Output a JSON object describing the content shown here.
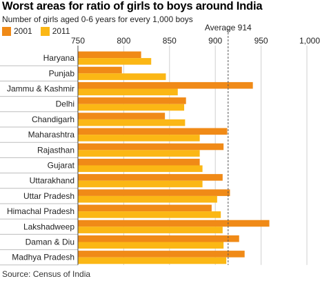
{
  "title": "Worst areas for ratio of girls to boys around India",
  "subtitle": "Number of girls aged 0-6 years for every 1,000 boys",
  "source": "Source: Census of India",
  "legend": [
    {
      "label": "2001",
      "color": "#f08a17"
    },
    {
      "label": "2011",
      "color": "#fbb715"
    }
  ],
  "chart_data": {
    "type": "bar",
    "orientation": "horizontal",
    "title": "Worst areas for ratio of girls to boys around India",
    "subtitle": "Number of girls aged 0-6 years for every 1,000 boys",
    "xlim": [
      750,
      1000
    ],
    "x_ticks": [
      "750",
      "800",
      "850",
      "900",
      "950",
      "1,000"
    ],
    "x_tick_values": [
      750,
      800,
      850,
      900,
      950,
      1000
    ],
    "grid": true,
    "legend_position": "top-left",
    "categories": [
      "Haryana",
      "Punjab",
      "Jammu & Kashmir",
      "Delhi",
      "Chandigarh",
      "Maharashtra",
      "Rajasthan",
      "Gujarat",
      "Uttarakhand",
      "Uttar Pradesh",
      "Himachal Pradesh",
      "Lakshadweep",
      "Daman & Diu",
      "Madhya Pradesh"
    ],
    "series": [
      {
        "name": "2001",
        "color": "#f08a17",
        "values": [
          819,
          798,
          941,
          868,
          845,
          913,
          909,
          883,
          908,
          916,
          896,
          959,
          926,
          932
        ]
      },
      {
        "name": "2011",
        "color": "#fbb715",
        "values": [
          830,
          846,
          859,
          866,
          867,
          883,
          883,
          886,
          886,
          902,
          906,
          908,
          909,
          912
        ]
      }
    ],
    "reference_line": {
      "label": "Average 914",
      "value": 914
    }
  }
}
